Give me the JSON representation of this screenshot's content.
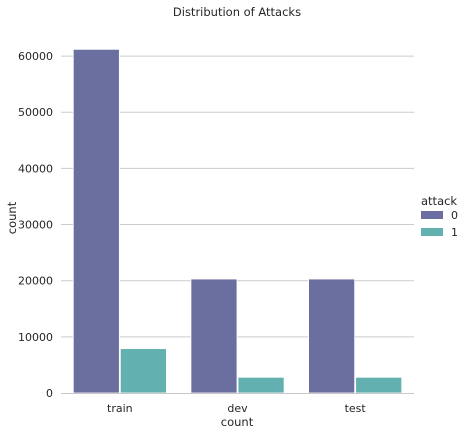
{
  "chart_data": {
    "type": "bar",
    "title": "Distribution of Attacks",
    "xlabel": "count",
    "ylabel": "count",
    "categories": [
      "train",
      "dev",
      "test"
    ],
    "series": [
      {
        "name": "0",
        "values": [
          61200,
          20300,
          20300
        ],
        "color": "#6b6fa0"
      },
      {
        "name": "1",
        "values": [
          7900,
          2800,
          2800
        ],
        "color": "#62b0b0"
      }
    ],
    "ylim": [
      0,
      65000
    ],
    "yticks": [
      0,
      10000,
      20000,
      30000,
      40000,
      50000,
      60000
    ],
    "legend_title": "attack",
    "legend_position": "right",
    "grid": "horizontal"
  }
}
